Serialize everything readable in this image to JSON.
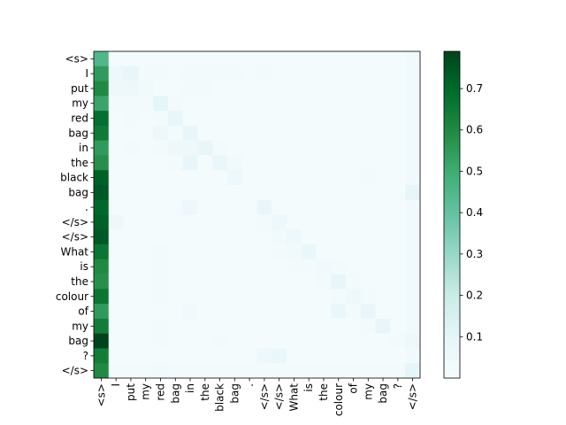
{
  "chart_data": {
    "type": "heatmap",
    "title": "",
    "xlabel": "",
    "ylabel": "",
    "x_labels": [
      "<s>",
      "I",
      "put",
      "my",
      "red",
      "bag",
      "in",
      "the",
      "black",
      "bag",
      ".",
      "</s>",
      "</s>",
      "What",
      "is",
      "the",
      "colour",
      "of",
      "my",
      "bag",
      "?",
      "</s>"
    ],
    "y_labels": [
      "<s>",
      "I",
      "put",
      "my",
      "red",
      "bag",
      "in",
      "the",
      "black",
      "bag",
      ".",
      "</s>",
      "</s>",
      "What",
      "is",
      "the",
      "colour",
      "of",
      "my",
      "bag",
      "?",
      "</s>"
    ],
    "colormap": "BuGn",
    "colorbar": {
      "min": 0.0,
      "max": 0.79,
      "ticks": [
        0.1,
        0.2,
        0.3,
        0.4,
        0.5,
        0.6,
        0.7
      ]
    },
    "values": [
      [
        0.45,
        0.02,
        0.02,
        0.02,
        0.02,
        0.02,
        0.02,
        0.02,
        0.02,
        0.02,
        0.02,
        0.02,
        0.02,
        0.02,
        0.02,
        0.02,
        0.02,
        0.02,
        0.02,
        0.02,
        0.02,
        0.04
      ],
      [
        0.55,
        0.06,
        0.08,
        0.03,
        0.03,
        0.02,
        0.03,
        0.03,
        0.03,
        0.03,
        0.02,
        0.03,
        0.02,
        0.02,
        0.02,
        0.02,
        0.02,
        0.02,
        0.02,
        0.02,
        0.02,
        0.04
      ],
      [
        0.6,
        0.05,
        0.05,
        0.04,
        0.02,
        0.02,
        0.03,
        0.03,
        0.02,
        0.02,
        0.02,
        0.02,
        0.02,
        0.02,
        0.02,
        0.02,
        0.02,
        0.02,
        0.02,
        0.02,
        0.02,
        0.04
      ],
      [
        0.52,
        0.03,
        0.03,
        0.03,
        0.1,
        0.03,
        0.02,
        0.02,
        0.02,
        0.02,
        0.02,
        0.02,
        0.02,
        0.02,
        0.02,
        0.02,
        0.02,
        0.02,
        0.02,
        0.02,
        0.02,
        0.04
      ],
      [
        0.68,
        0.02,
        0.03,
        0.02,
        0.03,
        0.09,
        0.02,
        0.02,
        0.02,
        0.02,
        0.02,
        0.02,
        0.02,
        0.02,
        0.02,
        0.02,
        0.02,
        0.02,
        0.02,
        0.02,
        0.02,
        0.04
      ],
      [
        0.65,
        0.02,
        0.02,
        0.02,
        0.05,
        0.03,
        0.08,
        0.02,
        0.02,
        0.02,
        0.02,
        0.02,
        0.02,
        0.02,
        0.02,
        0.02,
        0.02,
        0.02,
        0.02,
        0.02,
        0.02,
        0.04
      ],
      [
        0.55,
        0.02,
        0.03,
        0.02,
        0.03,
        0.05,
        0.05,
        0.08,
        0.03,
        0.02,
        0.02,
        0.02,
        0.02,
        0.02,
        0.02,
        0.02,
        0.02,
        0.02,
        0.02,
        0.02,
        0.02,
        0.04
      ],
      [
        0.58,
        0.02,
        0.02,
        0.02,
        0.02,
        0.03,
        0.08,
        0.02,
        0.07,
        0.04,
        0.02,
        0.02,
        0.02,
        0.02,
        0.02,
        0.02,
        0.02,
        0.02,
        0.02,
        0.02,
        0.02,
        0.04
      ],
      [
        0.72,
        0.02,
        0.02,
        0.02,
        0.02,
        0.02,
        0.02,
        0.02,
        0.02,
        0.06,
        0.02,
        0.02,
        0.02,
        0.02,
        0.02,
        0.02,
        0.02,
        0.02,
        0.03,
        0.02,
        0.02,
        0.04
      ],
      [
        0.74,
        0.02,
        0.02,
        0.02,
        0.02,
        0.02,
        0.02,
        0.02,
        0.02,
        0.02,
        0.02,
        0.02,
        0.02,
        0.02,
        0.02,
        0.02,
        0.02,
        0.02,
        0.02,
        0.02,
        0.02,
        0.08
      ],
      [
        0.7,
        0.02,
        0.02,
        0.02,
        0.02,
        0.02,
        0.06,
        0.02,
        0.02,
        0.02,
        0.02,
        0.08,
        0.02,
        0.02,
        0.02,
        0.02,
        0.02,
        0.02,
        0.02,
        0.02,
        0.02,
        0.04
      ],
      [
        0.72,
        0.05,
        0.02,
        0.02,
        0.02,
        0.02,
        0.02,
        0.02,
        0.02,
        0.02,
        0.02,
        0.03,
        0.06,
        0.02,
        0.02,
        0.02,
        0.02,
        0.02,
        0.02,
        0.02,
        0.02,
        0.04
      ],
      [
        0.74,
        0.02,
        0.02,
        0.02,
        0.02,
        0.02,
        0.02,
        0.02,
        0.02,
        0.02,
        0.02,
        0.02,
        0.04,
        0.06,
        0.02,
        0.02,
        0.02,
        0.02,
        0.02,
        0.02,
        0.02,
        0.04
      ],
      [
        0.66,
        0.02,
        0.02,
        0.02,
        0.03,
        0.02,
        0.02,
        0.02,
        0.02,
        0.02,
        0.02,
        0.02,
        0.03,
        0.04,
        0.07,
        0.02,
        0.02,
        0.02,
        0.02,
        0.02,
        0.02,
        0.04
      ],
      [
        0.6,
        0.02,
        0.02,
        0.02,
        0.03,
        0.02,
        0.02,
        0.02,
        0.02,
        0.02,
        0.02,
        0.02,
        0.02,
        0.03,
        0.03,
        0.04,
        0.03,
        0.02,
        0.02,
        0.02,
        0.02,
        0.04
      ],
      [
        0.58,
        0.02,
        0.02,
        0.02,
        0.03,
        0.02,
        0.02,
        0.02,
        0.02,
        0.02,
        0.02,
        0.02,
        0.02,
        0.02,
        0.02,
        0.03,
        0.08,
        0.03,
        0.02,
        0.02,
        0.02,
        0.04
      ],
      [
        0.66,
        0.02,
        0.02,
        0.02,
        0.03,
        0.02,
        0.02,
        0.02,
        0.02,
        0.02,
        0.02,
        0.02,
        0.02,
        0.02,
        0.02,
        0.02,
        0.03,
        0.05,
        0.03,
        0.02,
        0.02,
        0.04
      ],
      [
        0.55,
        0.02,
        0.02,
        0.02,
        0.02,
        0.02,
        0.04,
        0.02,
        0.02,
        0.02,
        0.02,
        0.02,
        0.02,
        0.02,
        0.02,
        0.02,
        0.07,
        0.03,
        0.08,
        0.02,
        0.02,
        0.04
      ],
      [
        0.64,
        0.02,
        0.02,
        0.02,
        0.03,
        0.02,
        0.02,
        0.02,
        0.02,
        0.02,
        0.02,
        0.02,
        0.02,
        0.02,
        0.02,
        0.02,
        0.02,
        0.02,
        0.03,
        0.08,
        0.02,
        0.04
      ],
      [
        0.79,
        0.02,
        0.02,
        0.02,
        0.03,
        0.02,
        0.02,
        0.02,
        0.03,
        0.02,
        0.02,
        0.02,
        0.02,
        0.02,
        0.02,
        0.02,
        0.02,
        0.02,
        0.02,
        0.02,
        0.03,
        0.05
      ],
      [
        0.64,
        0.02,
        0.02,
        0.02,
        0.02,
        0.02,
        0.02,
        0.02,
        0.02,
        0.02,
        0.02,
        0.06,
        0.07,
        0.02,
        0.02,
        0.02,
        0.02,
        0.02,
        0.02,
        0.02,
        0.02,
        0.04
      ],
      [
        0.6,
        0.03,
        0.03,
        0.03,
        0.04,
        0.03,
        0.03,
        0.03,
        0.03,
        0.03,
        0.03,
        0.03,
        0.03,
        0.03,
        0.03,
        0.03,
        0.03,
        0.03,
        0.03,
        0.03,
        0.03,
        0.1
      ]
    ]
  }
}
